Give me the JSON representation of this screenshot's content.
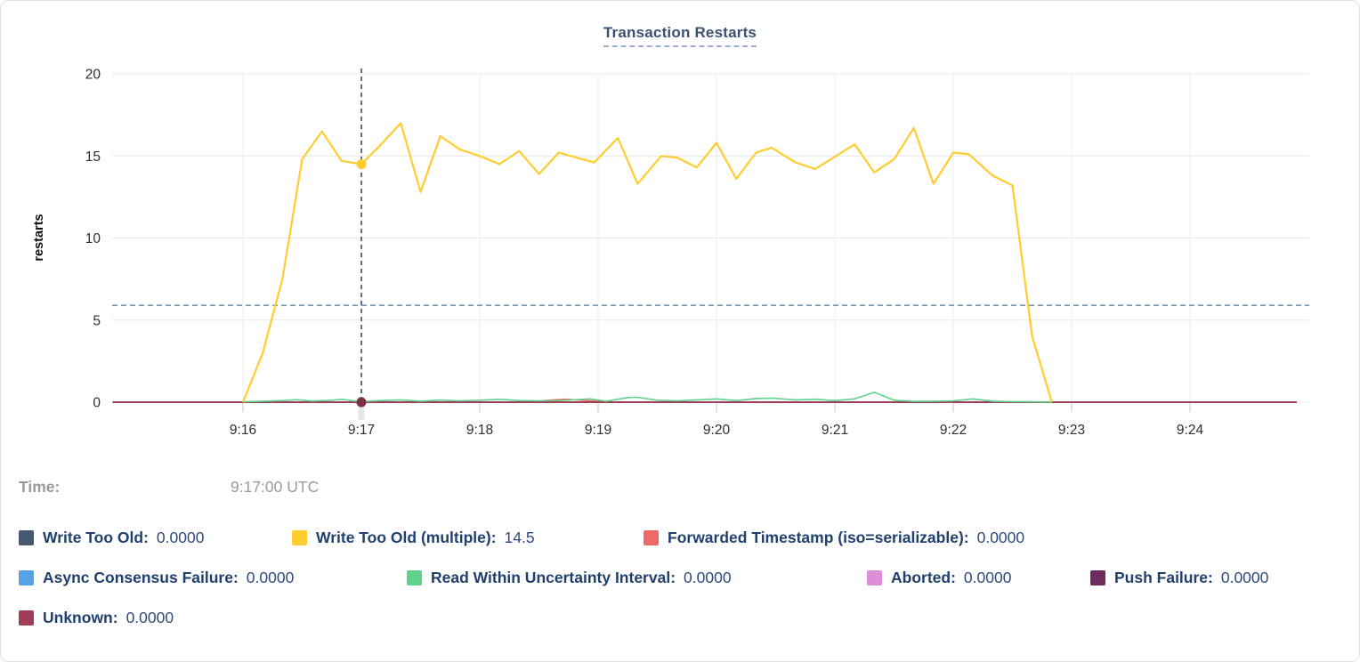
{
  "chart_data": {
    "type": "line",
    "title": "Transaction Restarts",
    "ylabel": "restarts",
    "ylim": [
      0,
      20
    ],
    "y_ticks": [
      0,
      5,
      10,
      15,
      20
    ],
    "x_ticks": [
      "9:16",
      "9:17",
      "9:18",
      "9:19",
      "9:20",
      "9:21",
      "9:22",
      "9:23",
      "9:24"
    ],
    "grid": true,
    "average_line": {
      "value": 5.9,
      "color": "#7796ac"
    },
    "hover": {
      "time": "9:17:00 UTC",
      "at_tick": "9:17",
      "t_seconds": 60,
      "highlight_value": 14.5,
      "baseline_value": 0,
      "guideline_color": "#35527b",
      "baseline_dot_color": "#7c2f44"
    },
    "series": [
      {
        "name": "Write Too Old",
        "color": "#475872",
        "legend_value": "0.0000",
        "points": [
          [
            -66,
            0
          ],
          [
            534,
            0
          ]
        ]
      },
      {
        "name": "Write Too Old (multiple)",
        "color": "#ffcd30",
        "legend_value": "14.5",
        "points": [
          [
            0,
            0
          ],
          [
            10,
            3.0
          ],
          [
            20,
            7.5
          ],
          [
            30,
            14.8
          ],
          [
            40,
            16.5
          ],
          [
            50,
            14.7
          ],
          [
            60,
            14.5
          ],
          [
            70,
            15.7
          ],
          [
            80,
            17.0
          ],
          [
            90,
            12.8
          ],
          [
            100,
            16.2
          ],
          [
            110,
            15.4
          ],
          [
            120,
            15.0
          ],
          [
            130,
            14.5
          ],
          [
            140,
            15.3
          ],
          [
            150,
            13.9
          ],
          [
            160,
            15.2
          ],
          [
            172,
            14.8
          ],
          [
            178,
            14.6
          ],
          [
            190,
            16.1
          ],
          [
            200,
            13.3
          ],
          [
            212,
            15.0
          ],
          [
            220,
            14.9
          ],
          [
            230,
            14.3
          ],
          [
            240,
            15.8
          ],
          [
            250,
            13.6
          ],
          [
            260,
            15.2
          ],
          [
            268,
            15.5
          ],
          [
            280,
            14.6
          ],
          [
            290,
            14.2
          ],
          [
            310,
            15.7
          ],
          [
            320,
            14.0
          ],
          [
            330,
            14.8
          ],
          [
            340,
            16.7
          ],
          [
            350,
            13.3
          ],
          [
            360,
            15.2
          ],
          [
            368,
            15.1
          ],
          [
            380,
            13.8
          ],
          [
            390,
            13.2
          ],
          [
            400,
            4.0
          ],
          [
            410,
            0
          ]
        ]
      },
      {
        "name": "Forwarded Timestamp (iso=serializable)",
        "color": "#ee6a6a",
        "legend_value": "0.0000",
        "points": [
          [
            -66,
            0
          ],
          [
            145,
            0
          ],
          [
            155,
            0.12
          ],
          [
            163,
            0.18
          ],
          [
            172,
            0.12
          ],
          [
            182,
            0.04
          ],
          [
            190,
            0
          ],
          [
            534,
            0
          ]
        ]
      },
      {
        "name": "Async Consensus Failure",
        "color": "#55a3e3",
        "legend_value": "0.0000",
        "points": [
          [
            -66,
            0
          ],
          [
            534,
            0
          ]
        ]
      },
      {
        "name": "Read Within Uncertainty Interval",
        "color": "#5ed28a",
        "legend_value": "0.0000",
        "points": [
          [
            0,
            0.02
          ],
          [
            10,
            0.06
          ],
          [
            20,
            0.1
          ],
          [
            27,
            0.15
          ],
          [
            35,
            0.07
          ],
          [
            45,
            0.12
          ],
          [
            50,
            0.18
          ],
          [
            55,
            0.1
          ],
          [
            60,
            0.04
          ],
          [
            70,
            0.1
          ],
          [
            80,
            0.14
          ],
          [
            90,
            0.06
          ],
          [
            100,
            0.13
          ],
          [
            110,
            0.08
          ],
          [
            120,
            0.12
          ],
          [
            130,
            0.18
          ],
          [
            140,
            0.1
          ],
          [
            150,
            0.08
          ],
          [
            160,
            0.1
          ],
          [
            170,
            0.16
          ],
          [
            176,
            0.2
          ],
          [
            184,
            0.06
          ],
          [
            195,
            0.28
          ],
          [
            200,
            0.3
          ],
          [
            210,
            0.12
          ],
          [
            220,
            0.08
          ],
          [
            230,
            0.14
          ],
          [
            240,
            0.2
          ],
          [
            250,
            0.1
          ],
          [
            260,
            0.22
          ],
          [
            268,
            0.25
          ],
          [
            280,
            0.14
          ],
          [
            290,
            0.18
          ],
          [
            300,
            0.1
          ],
          [
            310,
            0.2
          ],
          [
            320,
            0.6
          ],
          [
            330,
            0.12
          ],
          [
            340,
            0.05
          ],
          [
            350,
            0.06
          ],
          [
            360,
            0.08
          ],
          [
            370,
            0.2
          ],
          [
            380,
            0.06
          ],
          [
            390,
            0.03
          ],
          [
            400,
            0.02
          ],
          [
            410,
            0
          ]
        ]
      },
      {
        "name": "Aborted",
        "color": "#dd8fd6",
        "legend_value": "0.0000",
        "points": [
          [
            -66,
            0
          ],
          [
            534,
            0
          ]
        ]
      },
      {
        "name": "Push Failure",
        "color": "#6e2b5e",
        "legend_value": "0.0000",
        "points": [
          [
            -66,
            0
          ],
          [
            534,
            0
          ]
        ]
      },
      {
        "name": "Unknown",
        "color": "#a03e58",
        "legend_value": "0.0000",
        "points": [
          [
            -66,
            0
          ],
          [
            534,
            0
          ]
        ]
      }
    ]
  },
  "hover_readout": {
    "label": "Time:",
    "value": "9:17:00 UTC"
  }
}
